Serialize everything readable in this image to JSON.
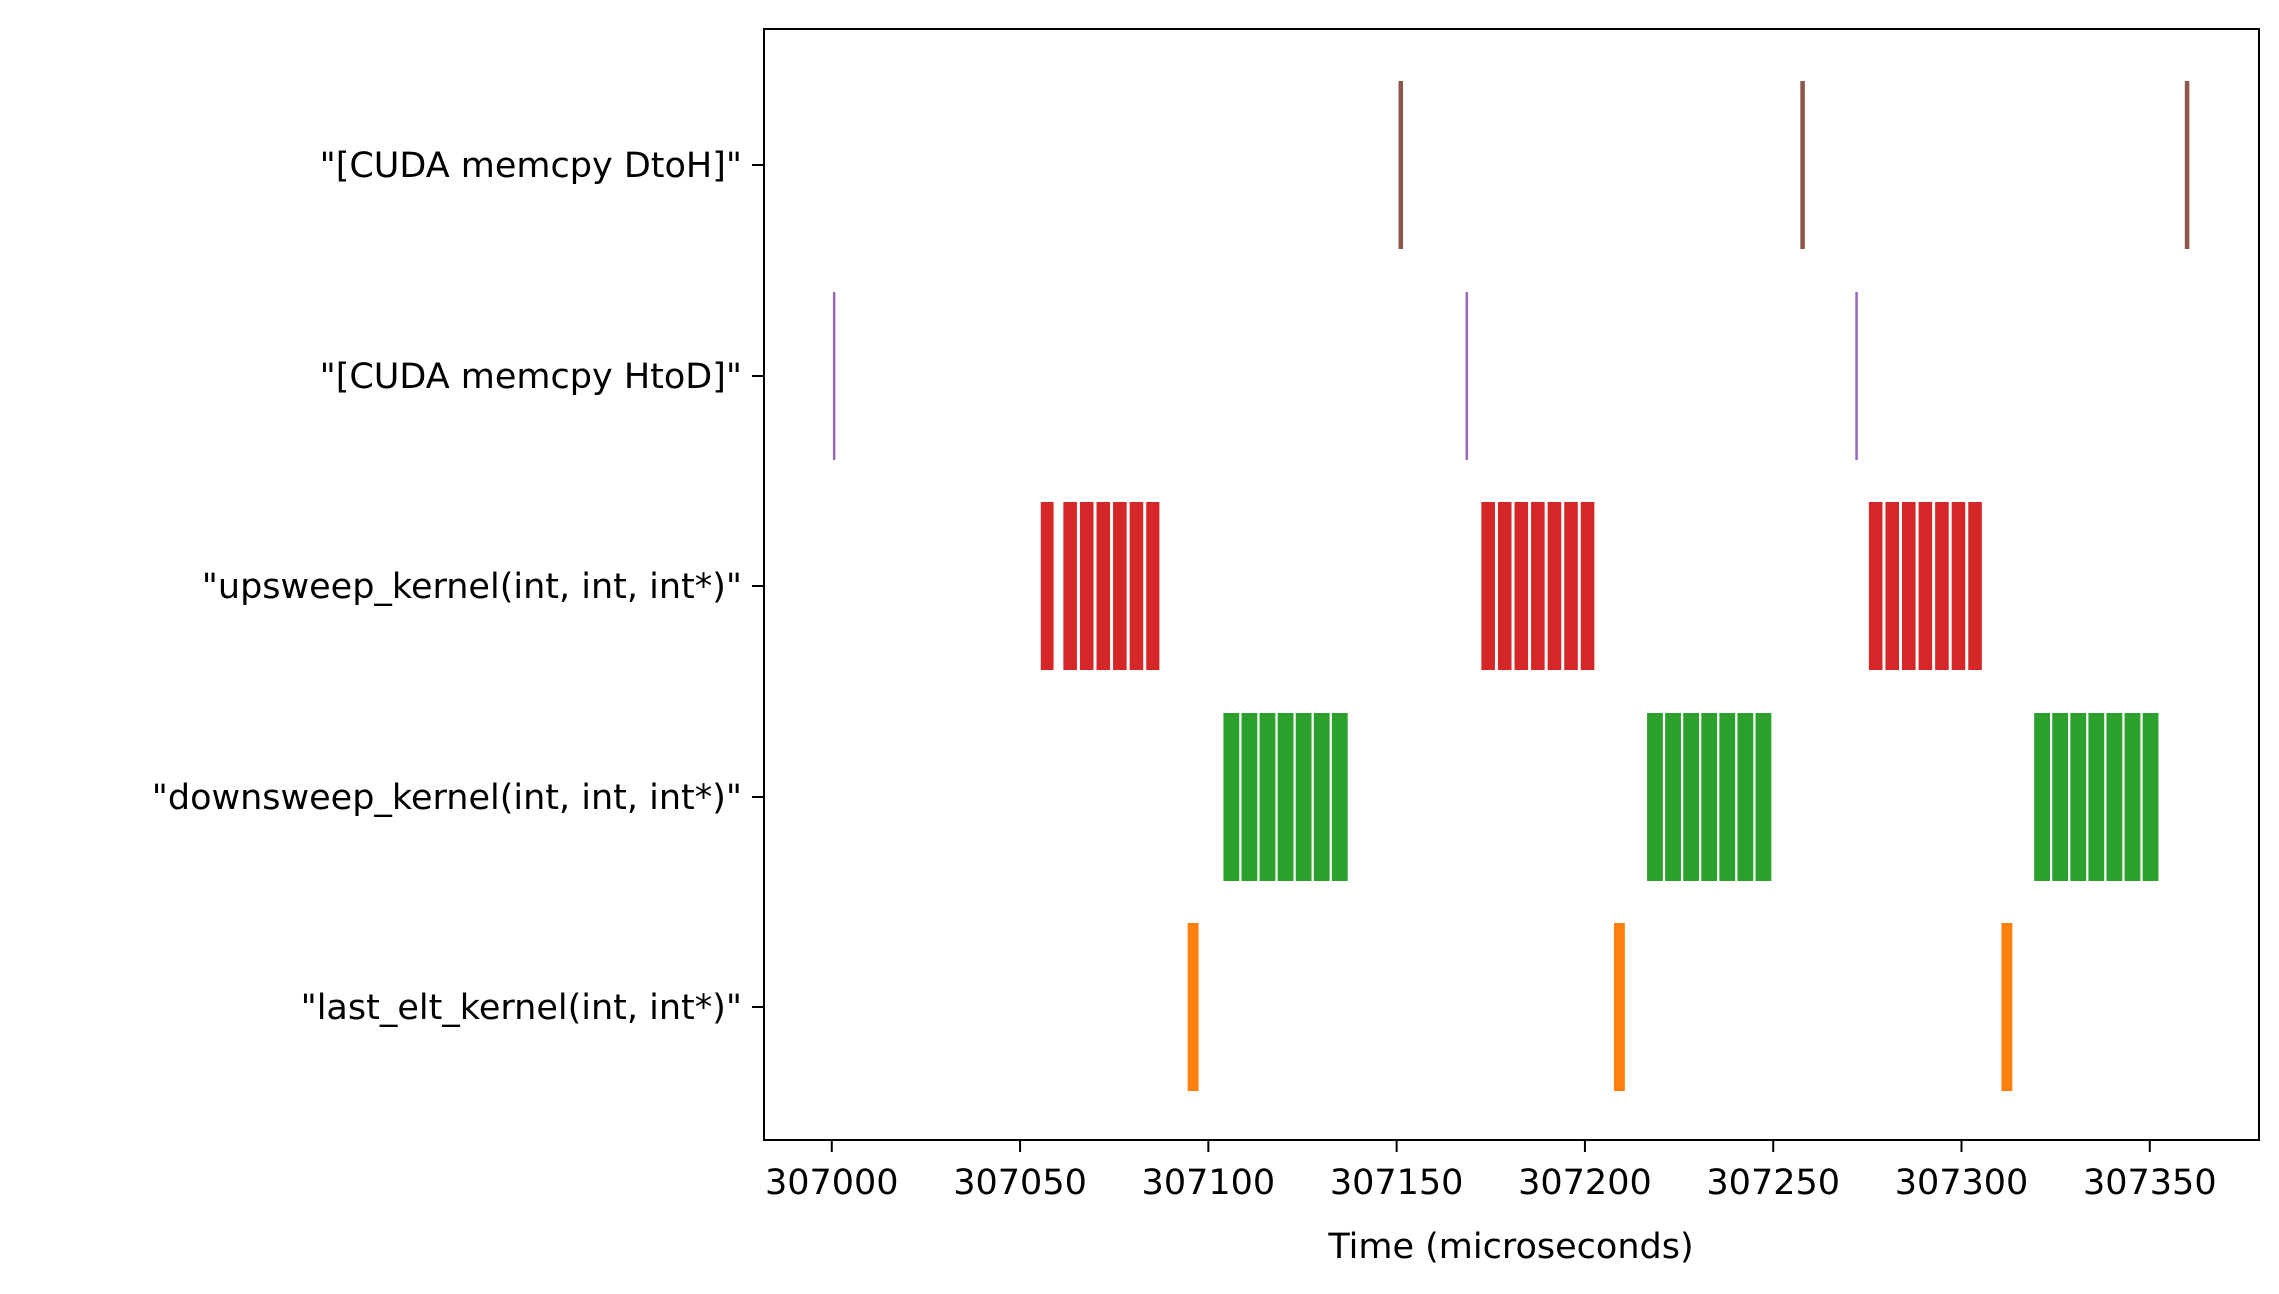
{
  "chart_data": {
    "type": "timeline",
    "title": "",
    "xlabel": "Time (microseconds)",
    "ylabel": "",
    "xlim": [
      306982,
      307379
    ],
    "xticks": [
      307000,
      307050,
      307100,
      307150,
      307200,
      307250,
      307300,
      307350
    ],
    "xtick_labels": [
      "307000",
      "307050",
      "307100",
      "307150",
      "307200",
      "307250",
      "307300",
      "307350"
    ],
    "grid": false,
    "categories": [
      "\"[CUDA memcpy DtoH]\"",
      "\"[CUDA memcpy HtoD]\"",
      "\"upsweep_kernel(int, int, int*)\"",
      "\"downsweep_kernel(int, int, int*)\"",
      "\"last_elt_kernel(int, int*)\""
    ],
    "series": [
      {
        "category_index": 0,
        "color": "#8c564b",
        "events": [
          [
            307150.5,
            1.2
          ],
          [
            307257.2,
            1.2
          ],
          [
            307359.3,
            1.2
          ]
        ]
      },
      {
        "category_index": 1,
        "color": "#9467bd",
        "events": [
          [
            307000.3,
            0.6
          ],
          [
            307168.3,
            0.6
          ],
          [
            307271.8,
            0.6
          ]
        ]
      },
      {
        "category_index": 2,
        "color": "#d62728",
        "events": [
          [
            307055.5,
            3.4
          ],
          [
            307061.5,
            3.6
          ],
          [
            307065.9,
            3.6
          ],
          [
            307070.3,
            3.6
          ],
          [
            307074.7,
            3.6
          ],
          [
            307079.1,
            3.6
          ],
          [
            307083.5,
            3.5
          ],
          [
            307172.5,
            3.6
          ],
          [
            307176.9,
            3.6
          ],
          [
            307181.3,
            3.6
          ],
          [
            307185.7,
            3.6
          ],
          [
            307190.1,
            3.6
          ],
          [
            307194.5,
            3.6
          ],
          [
            307198.9,
            3.6
          ],
          [
            307275.4,
            3.6
          ],
          [
            307279.8,
            3.6
          ],
          [
            307284.2,
            3.6
          ],
          [
            307288.6,
            3.6
          ],
          [
            307293.0,
            3.6
          ],
          [
            307297.4,
            3.6
          ],
          [
            307301.8,
            3.6
          ]
        ]
      },
      {
        "category_index": 3,
        "color": "#2ca02c",
        "events": [
          [
            307104.0,
            4.2
          ],
          [
            307108.8,
            4.2
          ],
          [
            307113.6,
            4.2
          ],
          [
            307118.4,
            4.2
          ],
          [
            307123.2,
            4.2
          ],
          [
            307128.0,
            4.2
          ],
          [
            307132.8,
            4.2
          ],
          [
            307216.5,
            4.2
          ],
          [
            307221.3,
            4.2
          ],
          [
            307226.1,
            4.2
          ],
          [
            307230.9,
            4.2
          ],
          [
            307235.7,
            4.2
          ],
          [
            307240.5,
            4.2
          ],
          [
            307245.3,
            4.2
          ],
          [
            307319.3,
            4.2
          ],
          [
            307324.1,
            4.2
          ],
          [
            307328.9,
            4.2
          ],
          [
            307333.7,
            4.2
          ],
          [
            307338.5,
            4.2
          ],
          [
            307343.3,
            4.2
          ],
          [
            307348.1,
            4.2
          ]
        ]
      },
      {
        "category_index": 4,
        "color": "#ff7f0e",
        "events": [
          [
            307094.5,
            2.9
          ],
          [
            307207.7,
            2.9
          ],
          [
            307310.6,
            2.9
          ]
        ]
      }
    ]
  }
}
